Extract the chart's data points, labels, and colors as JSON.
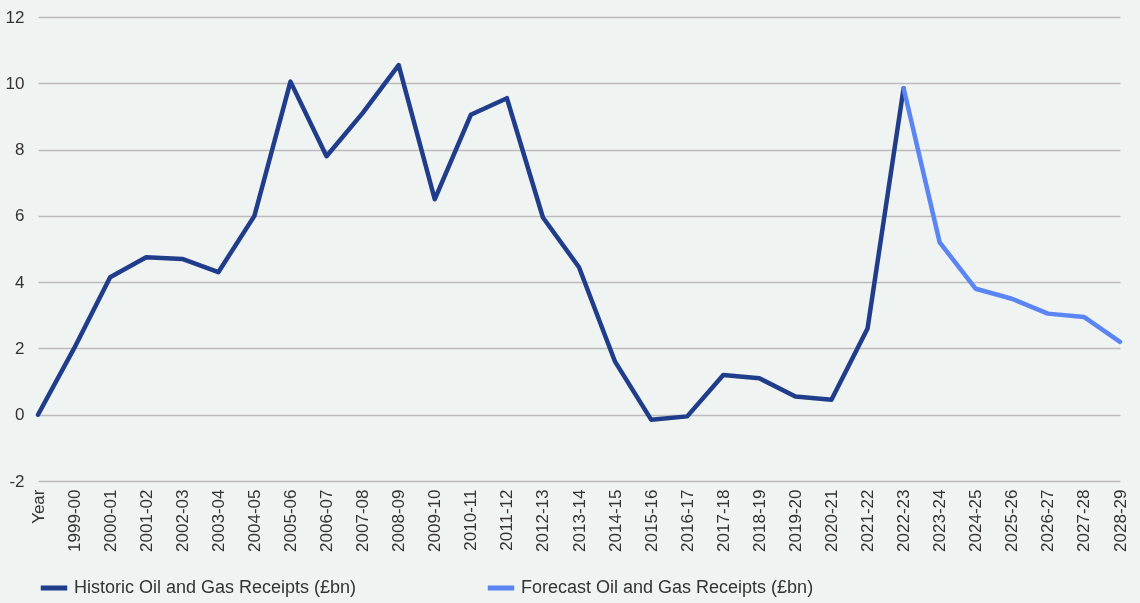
{
  "chart_data": {
    "type": "line",
    "categories": [
      "Year",
      "1999-00",
      "2000-01",
      "2001-02",
      "2002-03",
      "2003-04",
      "2004-05",
      "2005-06",
      "2006-07",
      "2007-08",
      "2008-09",
      "2009-10",
      "2010-11",
      "2011-12",
      "2012-13",
      "2013-14",
      "2014-15",
      "2015-16",
      "2016-17",
      "2017-18",
      "2018-19",
      "2019-20",
      "2020-21",
      "2021-22",
      "2022-23",
      "2023-24",
      "2024-25",
      "2025-26",
      "2026-27",
      "2027-28",
      "2028-29"
    ],
    "series": [
      {
        "name": "Historic Oil and Gas Receipts (£bn)",
        "color": "#1f3d8a",
        "values": [
          0,
          2.0,
          4.15,
          4.75,
          4.7,
          4.3,
          6.0,
          10.05,
          7.8,
          9.1,
          10.55,
          6.5,
          9.05,
          9.55,
          5.95,
          4.45,
          1.6,
          -0.15,
          -0.05,
          1.2,
          1.1,
          0.55,
          0.45,
          2.6,
          9.85,
          null,
          null,
          null,
          null,
          null,
          null
        ]
      },
      {
        "name": "Forecast Oil and Gas Receipts (£bn)",
        "color": "#5b85f5",
        "values": [
          null,
          null,
          null,
          null,
          null,
          null,
          null,
          null,
          null,
          null,
          null,
          null,
          null,
          null,
          null,
          null,
          null,
          null,
          null,
          null,
          null,
          null,
          null,
          null,
          9.85,
          5.2,
          3.8,
          3.5,
          3.05,
          2.95,
          2.2
        ]
      }
    ],
    "ylim": [
      -2,
      12
    ],
    "yticks": [
      -2,
      0,
      2,
      4,
      6,
      8,
      10,
      12
    ],
    "grid": "y",
    "legend": "bottom",
    "line_style": "solid",
    "marker": "none"
  }
}
